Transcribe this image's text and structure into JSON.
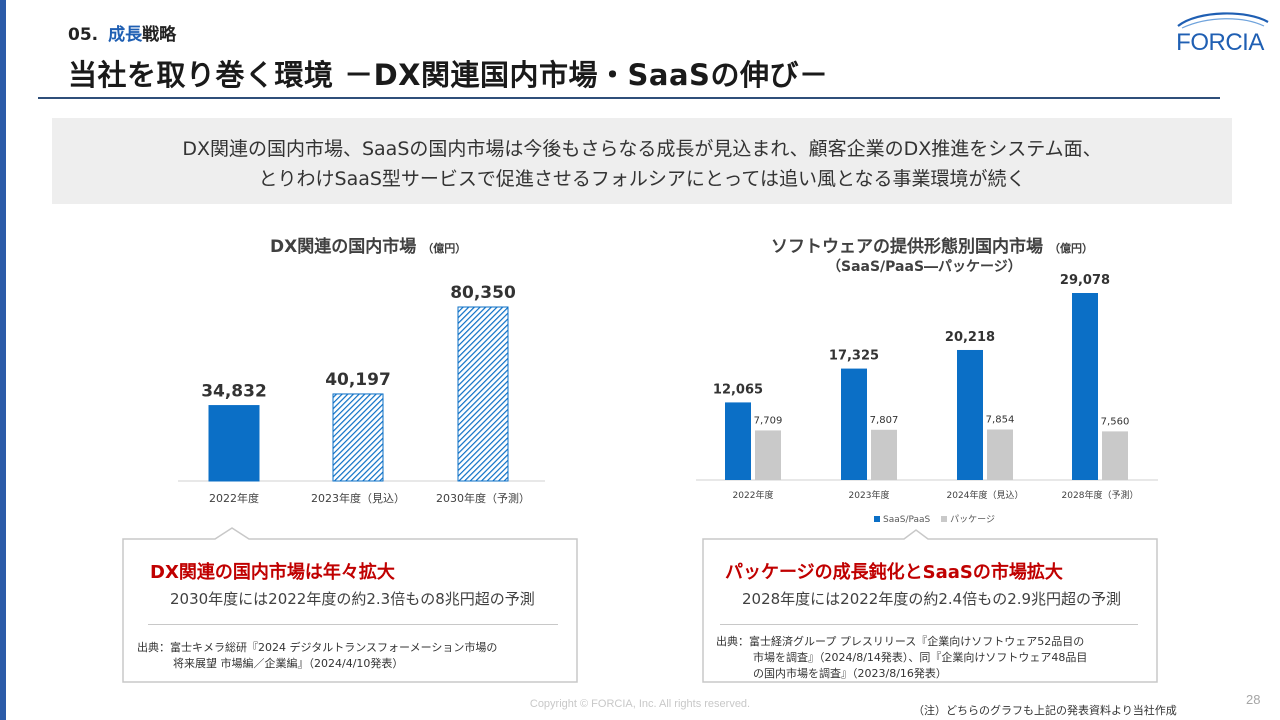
{
  "header": {
    "section_number": "05.",
    "section_accent": "成長",
    "section_rest": "戦略",
    "title": "当社を取り巻く環境 －DX関連国内市場・SaaSの伸び－",
    "logo_text": "FORCIA"
  },
  "summary": {
    "line1": "DX関連の国内市場、SaaSの国内市場は今後もさらなる成長が見込まれ、顧客企業のDX推進をシステム面、",
    "line2": "とりわけSaaS型サービスで促進させるフォルシアにとっては追い風となる事業環境が続く"
  },
  "left_chart": {
    "title": "DX関連の国内市場",
    "unit": "（億円）"
  },
  "right_chart": {
    "title": "ソフトウェアの提供形態別国内市場",
    "unit": "（億円）",
    "subtitle": "（SaaS/PaaS―パッケージ）"
  },
  "chart_data": [
    {
      "type": "bar",
      "title": "DX関連の国内市場",
      "unit": "（億円）",
      "categories": [
        "2022年度",
        "2023年度（見込）",
        "2030年度（予測）"
      ],
      "values": [
        34832,
        40197,
        80350
      ],
      "value_labels": [
        "34,832",
        "40,197",
        "80,350"
      ],
      "fill": [
        "solid",
        "hatched",
        "hatched"
      ],
      "ylim": [
        0,
        80350
      ],
      "grid": false,
      "color": "#0b6fc6"
    },
    {
      "type": "bar",
      "title": "ソフトウェアの提供形態別国内市場",
      "subtitle": "（SaaS/PaaS―パッケージ）",
      "unit": "（億円）",
      "categories": [
        "2022年度",
        "2023年度",
        "2024年度（見込）",
        "2028年度（予測）"
      ],
      "series": [
        {
          "name": "SaaS/PaaS",
          "values": [
            12065,
            17325,
            20218,
            29078
          ],
          "labels": [
            "12,065",
            "17,325",
            "20,218",
            "29,078"
          ],
          "color": "#0b6fc6"
        },
        {
          "name": "パッケージ",
          "values": [
            7709,
            7807,
            7854,
            7560
          ],
          "labels": [
            "7,709",
            "7,807",
            "7,854",
            "7,560"
          ],
          "color": "#c9c9c9"
        }
      ],
      "ylim": [
        0,
        29078
      ],
      "grid": false,
      "legend_position": "bottom"
    }
  ],
  "left_callout": {
    "heading": "DX関連の国内市場は年々拡大",
    "detail": "2030年度には2022年度の約2.3倍もの8兆円超の予測",
    "source_line1": "出典：富士キメラ総研『2024 デジタルトランスフォーメーション市場の",
    "source_line2": "将来展望 市場編／企業編』（2024/4/10発表）"
  },
  "right_callout": {
    "heading": "パッケージの成長鈍化とSaaSの市場拡大",
    "detail": "2028年度には2022年度の約2.4倍もの2.9兆円超の予測",
    "source_line1": "出典：富士経済グループ プレスリリース『企業向けソフトウェア52品目の",
    "source_line2": "市場を調査』（2024/8/14発表）、同『企業向けソフトウェア48品目",
    "source_line3": "の国内市場を調査』（2023/8/16発表）"
  },
  "footer": {
    "copyright": "Copyright © FORCIA, Inc. All rights reserved.",
    "footnote": "（注）どちらのグラフも上記の発表資料より当社作成",
    "page_number": "28"
  }
}
